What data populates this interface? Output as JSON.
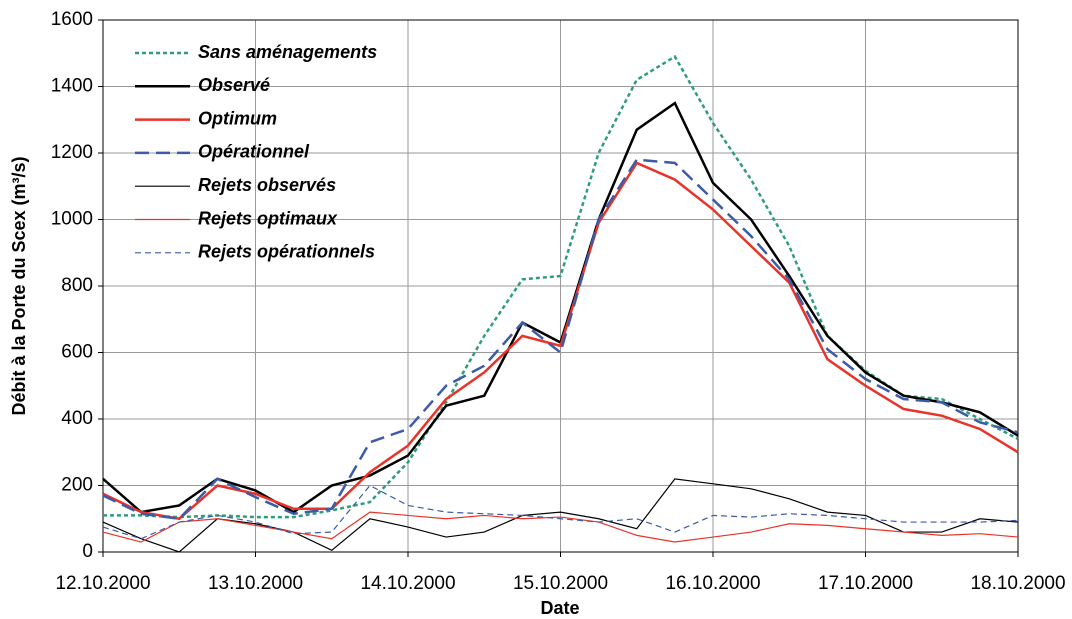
{
  "chart_data": {
    "type": "line",
    "xlabel": "Date",
    "ylabel": "Débit à la Porte du Scex (m³/s)",
    "x": [
      0,
      0.25,
      0.5,
      0.75,
      1,
      1.25,
      1.5,
      1.75,
      2,
      2.25,
      2.5,
      2.75,
      3,
      3.25,
      3.5,
      3.75,
      4,
      4.25,
      4.5,
      4.75,
      5,
      5.25,
      5.5,
      5.75,
      6
    ],
    "xlim": [
      0,
      6
    ],
    "xticks": [
      {
        "value": 0,
        "label": "12.10.2000"
      },
      {
        "value": 1,
        "label": "13.10.2000"
      },
      {
        "value": 2,
        "label": "14.10.2000"
      },
      {
        "value": 3,
        "label": "15.10.2000"
      },
      {
        "value": 4,
        "label": "16.10.2000"
      },
      {
        "value": 5,
        "label": "17.10.2000"
      },
      {
        "value": 6,
        "label": "18.10.2000"
      }
    ],
    "ylim": [
      0,
      1600
    ],
    "yticks": [
      0,
      200,
      400,
      600,
      800,
      1000,
      1200,
      1400,
      1600
    ],
    "grid": true,
    "legend": "upper left",
    "series": [
      {
        "name": "Sans aménagements",
        "color": "#2e9e7a",
        "style": "dotted",
        "weight": "thick",
        "values": [
          110,
          110,
          105,
          110,
          105,
          105,
          125,
          150,
          270,
          450,
          650,
          820,
          830,
          1200,
          1420,
          1490,
          1290,
          1120,
          920,
          650,
          545,
          470,
          460,
          400,
          340
        ]
      },
      {
        "name": "Observé",
        "color": "#000000",
        "style": "solid",
        "weight": "thick",
        "values": [
          220,
          120,
          140,
          220,
          185,
          120,
          200,
          230,
          290,
          440,
          470,
          690,
          630,
          1000,
          1270,
          1350,
          1110,
          1000,
          830,
          650,
          540,
          470,
          450,
          420,
          350
        ]
      },
      {
        "name": "Optimum",
        "color": "#e8332a",
        "style": "solid",
        "weight": "thick",
        "values": [
          175,
          120,
          100,
          200,
          175,
          130,
          130,
          240,
          320,
          460,
          540,
          650,
          620,
          990,
          1170,
          1120,
          1030,
          920,
          810,
          580,
          500,
          430,
          410,
          370,
          300
        ]
      },
      {
        "name": "Opérationnel",
        "color": "#3c5ba8",
        "style": "dashed",
        "weight": "thick",
        "values": [
          170,
          115,
          100,
          220,
          165,
          115,
          130,
          330,
          370,
          500,
          560,
          690,
          600,
          1000,
          1180,
          1170,
          1060,
          950,
          820,
          610,
          520,
          460,
          450,
          390,
          360
        ]
      },
      {
        "name": "Rejets observés",
        "color": "#000000",
        "style": "solid",
        "weight": "thin",
        "values": [
          90,
          40,
          0,
          100,
          85,
          60,
          5,
          100,
          75,
          45,
          60,
          110,
          120,
          100,
          70,
          220,
          205,
          190,
          160,
          120,
          110,
          60,
          60,
          100,
          90
        ]
      },
      {
        "name": "Rejets optimaux",
        "color": "#e8332a",
        "style": "solid",
        "weight": "thin",
        "values": [
          60,
          30,
          90,
          100,
          80,
          60,
          40,
          120,
          110,
          100,
          110,
          100,
          105,
          90,
          50,
          30,
          45,
          60,
          85,
          80,
          70,
          60,
          50,
          55,
          45
        ]
      },
      {
        "name": "Rejets opérationnels",
        "color": "#3c5ba8",
        "style": "dashed",
        "weight": "thin",
        "values": [
          75,
          40,
          90,
          110,
          90,
          55,
          60,
          200,
          140,
          120,
          115,
          110,
          100,
          90,
          100,
          60,
          110,
          105,
          115,
          110,
          100,
          90,
          90,
          90,
          95
        ]
      }
    ]
  }
}
